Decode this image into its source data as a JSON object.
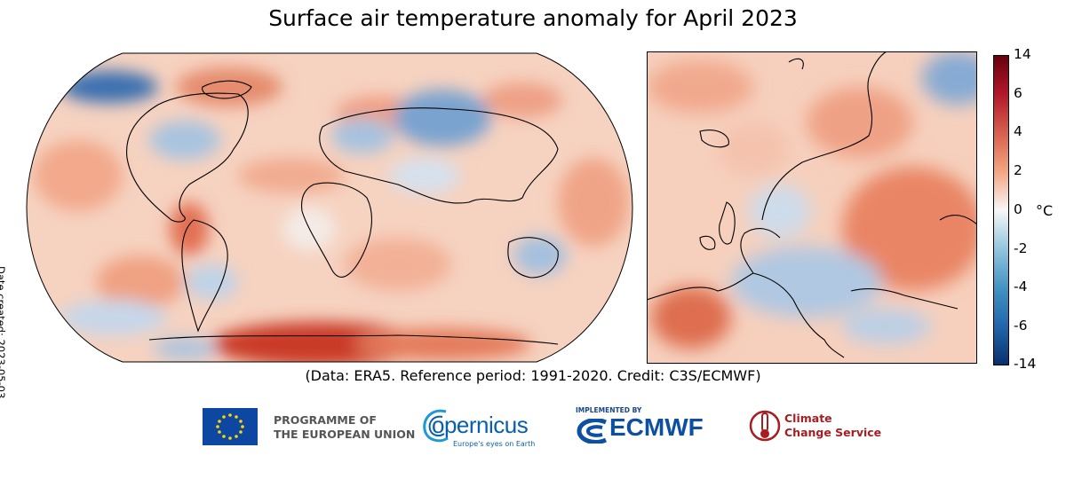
{
  "title": "Surface air temperature anomaly for April 2023",
  "date_created": "Date created: 2023-05-03",
  "caption": "(Data: ERA5.  Reference period: 1991-2020.  Credit: C3S/ECMWF)",
  "colorbar": {
    "unit": "°C",
    "ticks": [
      "14",
      "6",
      "4",
      "2",
      "0",
      "-2",
      "-4",
      "-6",
      "-14"
    ],
    "colors": [
      "#08306b",
      "#2166ac",
      "#4393c3",
      "#92c5de",
      "#f7f7f7",
      "#f4a582",
      "#d6604d",
      "#b2182b",
      "#67000d"
    ]
  },
  "maps": {
    "global_label": "world-map",
    "europe_label": "europe-map"
  },
  "logos": {
    "eu_line1": "PROGRAMME OF",
    "eu_line2": "THE EUROPEAN UNION",
    "copernicus": "opernicus",
    "copernicus_tag": "Europe's eyes on Earth",
    "implemented_by": "IMPLEMENTED BY",
    "ecmwf": "ECMWF",
    "c3s_line1": "Climate",
    "c3s_line2": "Change Service"
  }
}
